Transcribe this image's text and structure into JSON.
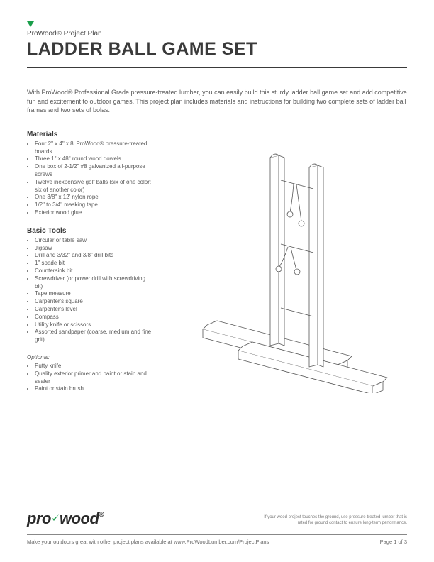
{
  "header": {
    "subhead": "ProWood® Project Plan",
    "title": "LADDER BALL GAME SET"
  },
  "intro": "With ProWood® Professional Grade pressure-treated lumber, you can easily build this sturdy ladder ball game set and add competitive fun and excitement to outdoor games. This project plan includes materials and instructions for building two complete sets of ladder ball frames and two sets of bolas.",
  "materials": {
    "heading": "Materials",
    "items": [
      "Four 2\" x 4\" x 8' ProWood® pressure-treated boards",
      "Three 1\" x 48\" round wood dowels",
      "One box of 2-1/2\" #8 galvanized all-purpose screws",
      "Twelve inexpensive golf balls (six of one color; six of another color)",
      "One 3/8\" x 12' nylon rope",
      "1/2\" to 3/4\" masking tape",
      "Exterior wood glue"
    ]
  },
  "tools": {
    "heading": "Basic Tools",
    "items": [
      "Circular or table saw",
      "Jigsaw",
      "Drill and 3/32\" and 3/8\" drill bits",
      "1\" spade bit",
      "Countersink bit",
      "Screwdriver (or power drill with screwdriving bit)",
      "Tape measure",
      "Carpenter's square",
      "Carpenter's level",
      "Compass",
      "Utility knife or scissors",
      "Assorted sandpaper (coarse, medium and fine grit)"
    ]
  },
  "optional": {
    "label": "Optional:",
    "items": [
      "Putty knife",
      "Quality exterior primer and paint or stain and sealer",
      "Paint or stain brush"
    ]
  },
  "logo": {
    "text1": "pro",
    "text2": "wood",
    "tick_color": "#1a9e4a"
  },
  "disclaimer": "If your wood project touches the ground, use pressure-treated lumber that is rated for ground contact to ensure long-term performance.",
  "footer": {
    "left": "Make your outdoors great with other project plans available at www.ProWoodLumber.com/ProjectPlans",
    "right": "Page 1 of 3"
  },
  "illustration": {
    "stroke": "#555555",
    "fill": "#ffffff",
    "stroke_width": 0.8
  }
}
